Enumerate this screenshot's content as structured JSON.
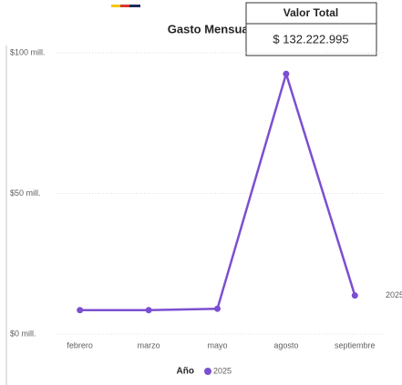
{
  "chart_data": {
    "type": "line",
    "title": "Gasto Mensual",
    "categories": [
      "febrero",
      "marzo",
      "mayo",
      "agosto",
      "septiembre"
    ],
    "series": [
      {
        "name": "2025",
        "color": "#7b4fd0",
        "values": [
          8.5,
          8.5,
          9,
          92.5,
          13.7
        ]
      }
    ],
    "ylim": [
      0,
      100
    ],
    "yticks": [
      {
        "value": 0,
        "label": "$0 mill."
      },
      {
        "value": 50,
        "label": "$50 mill."
      },
      {
        "value": 100,
        "label": "$100 mill."
      }
    ],
    "grid": true,
    "legend_title": "Año",
    "legend": "bottom"
  },
  "card": {
    "title": "Valor Total",
    "value": "$ 132.222.995"
  }
}
